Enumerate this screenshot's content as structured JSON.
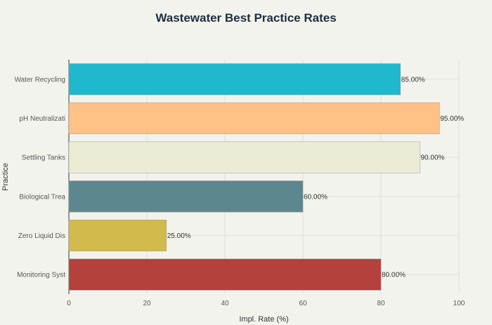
{
  "chart_data": {
    "type": "bar",
    "orientation": "horizontal",
    "title": "Wastewater Best Practice Rates",
    "xlabel": "Impl. Rate (%)",
    "ylabel": "Practice",
    "categories": [
      "Water Recycling",
      "pH Neutralizati",
      "Settling Tanks",
      "Biological Trea",
      "Zero Liquid Dis",
      "Monitoring Syst"
    ],
    "values": [
      85,
      95,
      90,
      60,
      25,
      80
    ],
    "data_labels": [
      "85.00%",
      "95.00%",
      "90.00%",
      "60.00%",
      "25.00%",
      "80.00%"
    ],
    "colors": [
      "#1fb8cd",
      "#ffc185",
      "#ecebd5",
      "#5d878f",
      "#d2ba4c",
      "#b4413c"
    ],
    "xlim": [
      0,
      100
    ],
    "xticks": [
      0,
      20,
      40,
      60,
      80,
      100
    ],
    "grid": true
  }
}
